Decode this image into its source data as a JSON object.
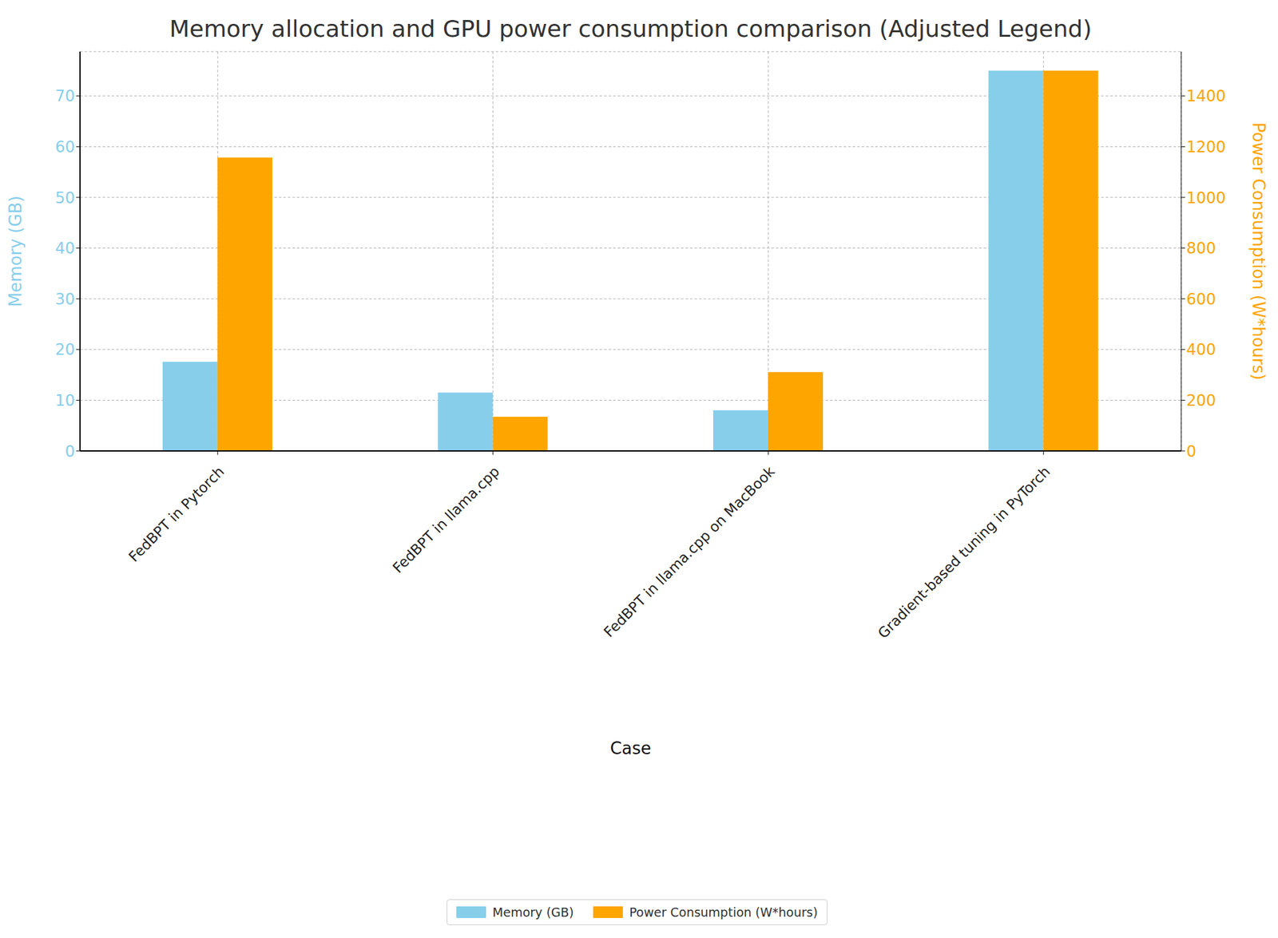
{
  "chart_data": {
    "type": "bar",
    "title": "Memory allocation and GPU power consumption comparison (Adjusted Legend)",
    "x_label": "Case",
    "y_label": "Memory (GB)",
    "y2_label": "Power Consumption (W*hours)",
    "categories": [
      "FedBPT in Pytorch",
      "FedBPT in llama.cpp",
      "FedBPT in llama.cpp on MacBook",
      "Gradient-based tuning in PyTorch"
    ],
    "series": [
      {
        "name": "Memory (GB)",
        "color": "#87ceeb",
        "values": [
          17.6,
          11.5,
          8.0,
          75
        ]
      },
      {
        "name": "Power Consumption (W*hours)",
        "color": "#ffa500",
        "values": [
          1157,
          135,
          311,
          1500
        ],
        "axis": "y2"
      }
    ],
    "ylim": [
      0,
      78.75
    ],
    "yticks": [
      0,
      10,
      20,
      30,
      40,
      50,
      60,
      70
    ],
    "y2lim": [
      0,
      1575
    ],
    "y2ticks": [
      0,
      200,
      400,
      600,
      800,
      1000,
      1200,
      1400
    ],
    "grid": true,
    "legend": "bottom"
  }
}
